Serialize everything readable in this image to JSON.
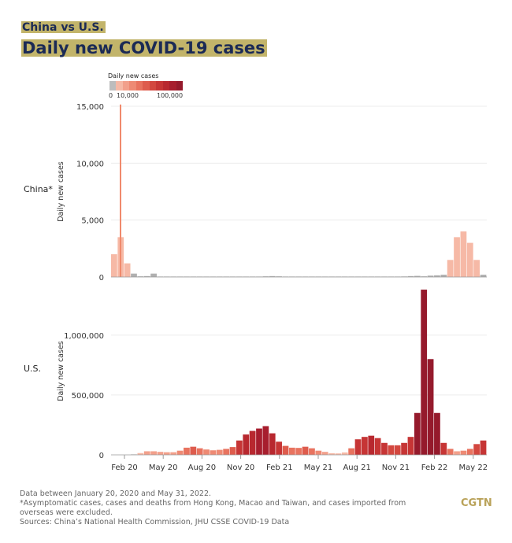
{
  "header": {
    "subtitle": "China vs U.S.",
    "title": "Daily new COVID-19 cases"
  },
  "legend": {
    "title": "Daily new cases",
    "ticks": [
      "0",
      "10,000",
      "100,000"
    ],
    "colors": [
      "#bdbdbd",
      "#f6b9a6",
      "#f2a08b",
      "#ee8a74",
      "#e8735f",
      "#de5c4d",
      "#d3473f",
      "#c63535",
      "#b8282f",
      "#a71e2e",
      "#951a2c"
    ]
  },
  "colors": {
    "grey": "#b0b0b0",
    "brand": "#b9a259",
    "title": "#1b2a55"
  },
  "chart_data": [
    {
      "type": "bar",
      "name": "China*",
      "ylabel": "Daily new cases",
      "ylim": [
        0,
        15000
      ],
      "yticks": [
        {
          "v": 0,
          "l": "0"
        },
        {
          "v": 5000,
          "l": "5,000"
        },
        {
          "v": 10000,
          "l": "10,000"
        },
        {
          "v": 15000,
          "l": "15,000"
        }
      ],
      "spike": {
        "date": "Feb 12, 2020",
        "value": 15152
      },
      "values": [
        2000,
        3500,
        1200,
        300,
        60,
        80,
        300,
        30,
        20,
        20,
        10,
        20,
        20,
        30,
        40,
        20,
        20,
        30,
        20,
        20,
        40,
        30,
        20,
        60,
        80,
        60,
        40,
        20,
        20,
        30,
        20,
        20,
        30,
        20,
        40,
        30,
        30,
        20,
        30,
        20,
        30,
        20,
        20,
        30,
        50,
        80,
        100,
        60,
        120,
        150,
        200,
        1500,
        3500,
        4000,
        3000,
        1500,
        200
      ]
    },
    {
      "type": "bar",
      "name": "U.S.",
      "ylabel": "Daily new cases",
      "ylim": [
        0,
        1400000
      ],
      "yticks": [
        {
          "v": 0,
          "l": "0"
        },
        {
          "v": 500000,
          "l": "500,000"
        },
        {
          "v": 1000000,
          "l": "1,000,000"
        }
      ],
      "values": [
        0,
        0,
        0,
        500,
        15000,
        30000,
        30000,
        25000,
        22000,
        22000,
        35000,
        60000,
        68000,
        55000,
        45000,
        38000,
        42000,
        50000,
        65000,
        120000,
        170000,
        200000,
        220000,
        240000,
        180000,
        110000,
        75000,
        60000,
        58000,
        68000,
        55000,
        35000,
        25000,
        14000,
        12000,
        20000,
        55000,
        130000,
        150000,
        160000,
        140000,
        100000,
        80000,
        80000,
        100000,
        150000,
        350000,
        1380000,
        800000,
        350000,
        100000,
        50000,
        30000,
        35000,
        50000,
        90000,
        120000
      ]
    }
  ],
  "xaxis": {
    "start": "Jan 20, 2020",
    "ticks": [
      "Feb 20",
      "May 20",
      "Aug 20",
      "Nov 20",
      "Feb 21",
      "May 21",
      "Aug 21",
      "Nov 21",
      "Feb 22",
      "May 22"
    ]
  },
  "footer": {
    "lines": [
      "Data between January 20, 2020 and May 31, 2022.",
      "*Asymptomatic cases, cases and deaths from Hong Kong, Macao and Taiwan, and cases imported from overseas were excluded.",
      "Sources: China’s National Health Commission, JHU CSSE COVID-19 Data"
    ],
    "brand": "CGTN"
  }
}
